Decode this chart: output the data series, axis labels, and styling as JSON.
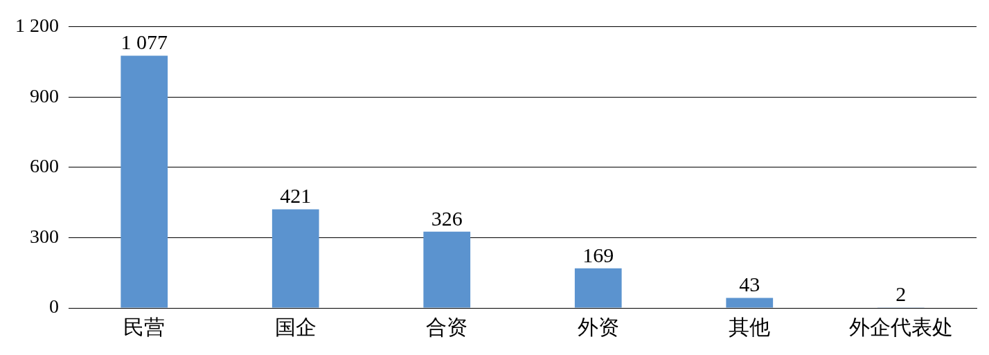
{
  "chart_data": {
    "type": "bar",
    "categories": [
      "民营",
      "国企",
      "合资",
      "外资",
      "其他",
      "外企代表处"
    ],
    "values": [
      1077,
      421,
      326,
      169,
      43,
      2
    ],
    "value_labels": [
      "1 077",
      "421",
      "326",
      "169",
      "43",
      "2"
    ],
    "color": "#5b93cf",
    "ylim": [
      0,
      1200
    ],
    "yticks": [
      0,
      300,
      600,
      900,
      {
        "value": 1200,
        "label": "1 200"
      }
    ],
    "grid": "y"
  }
}
